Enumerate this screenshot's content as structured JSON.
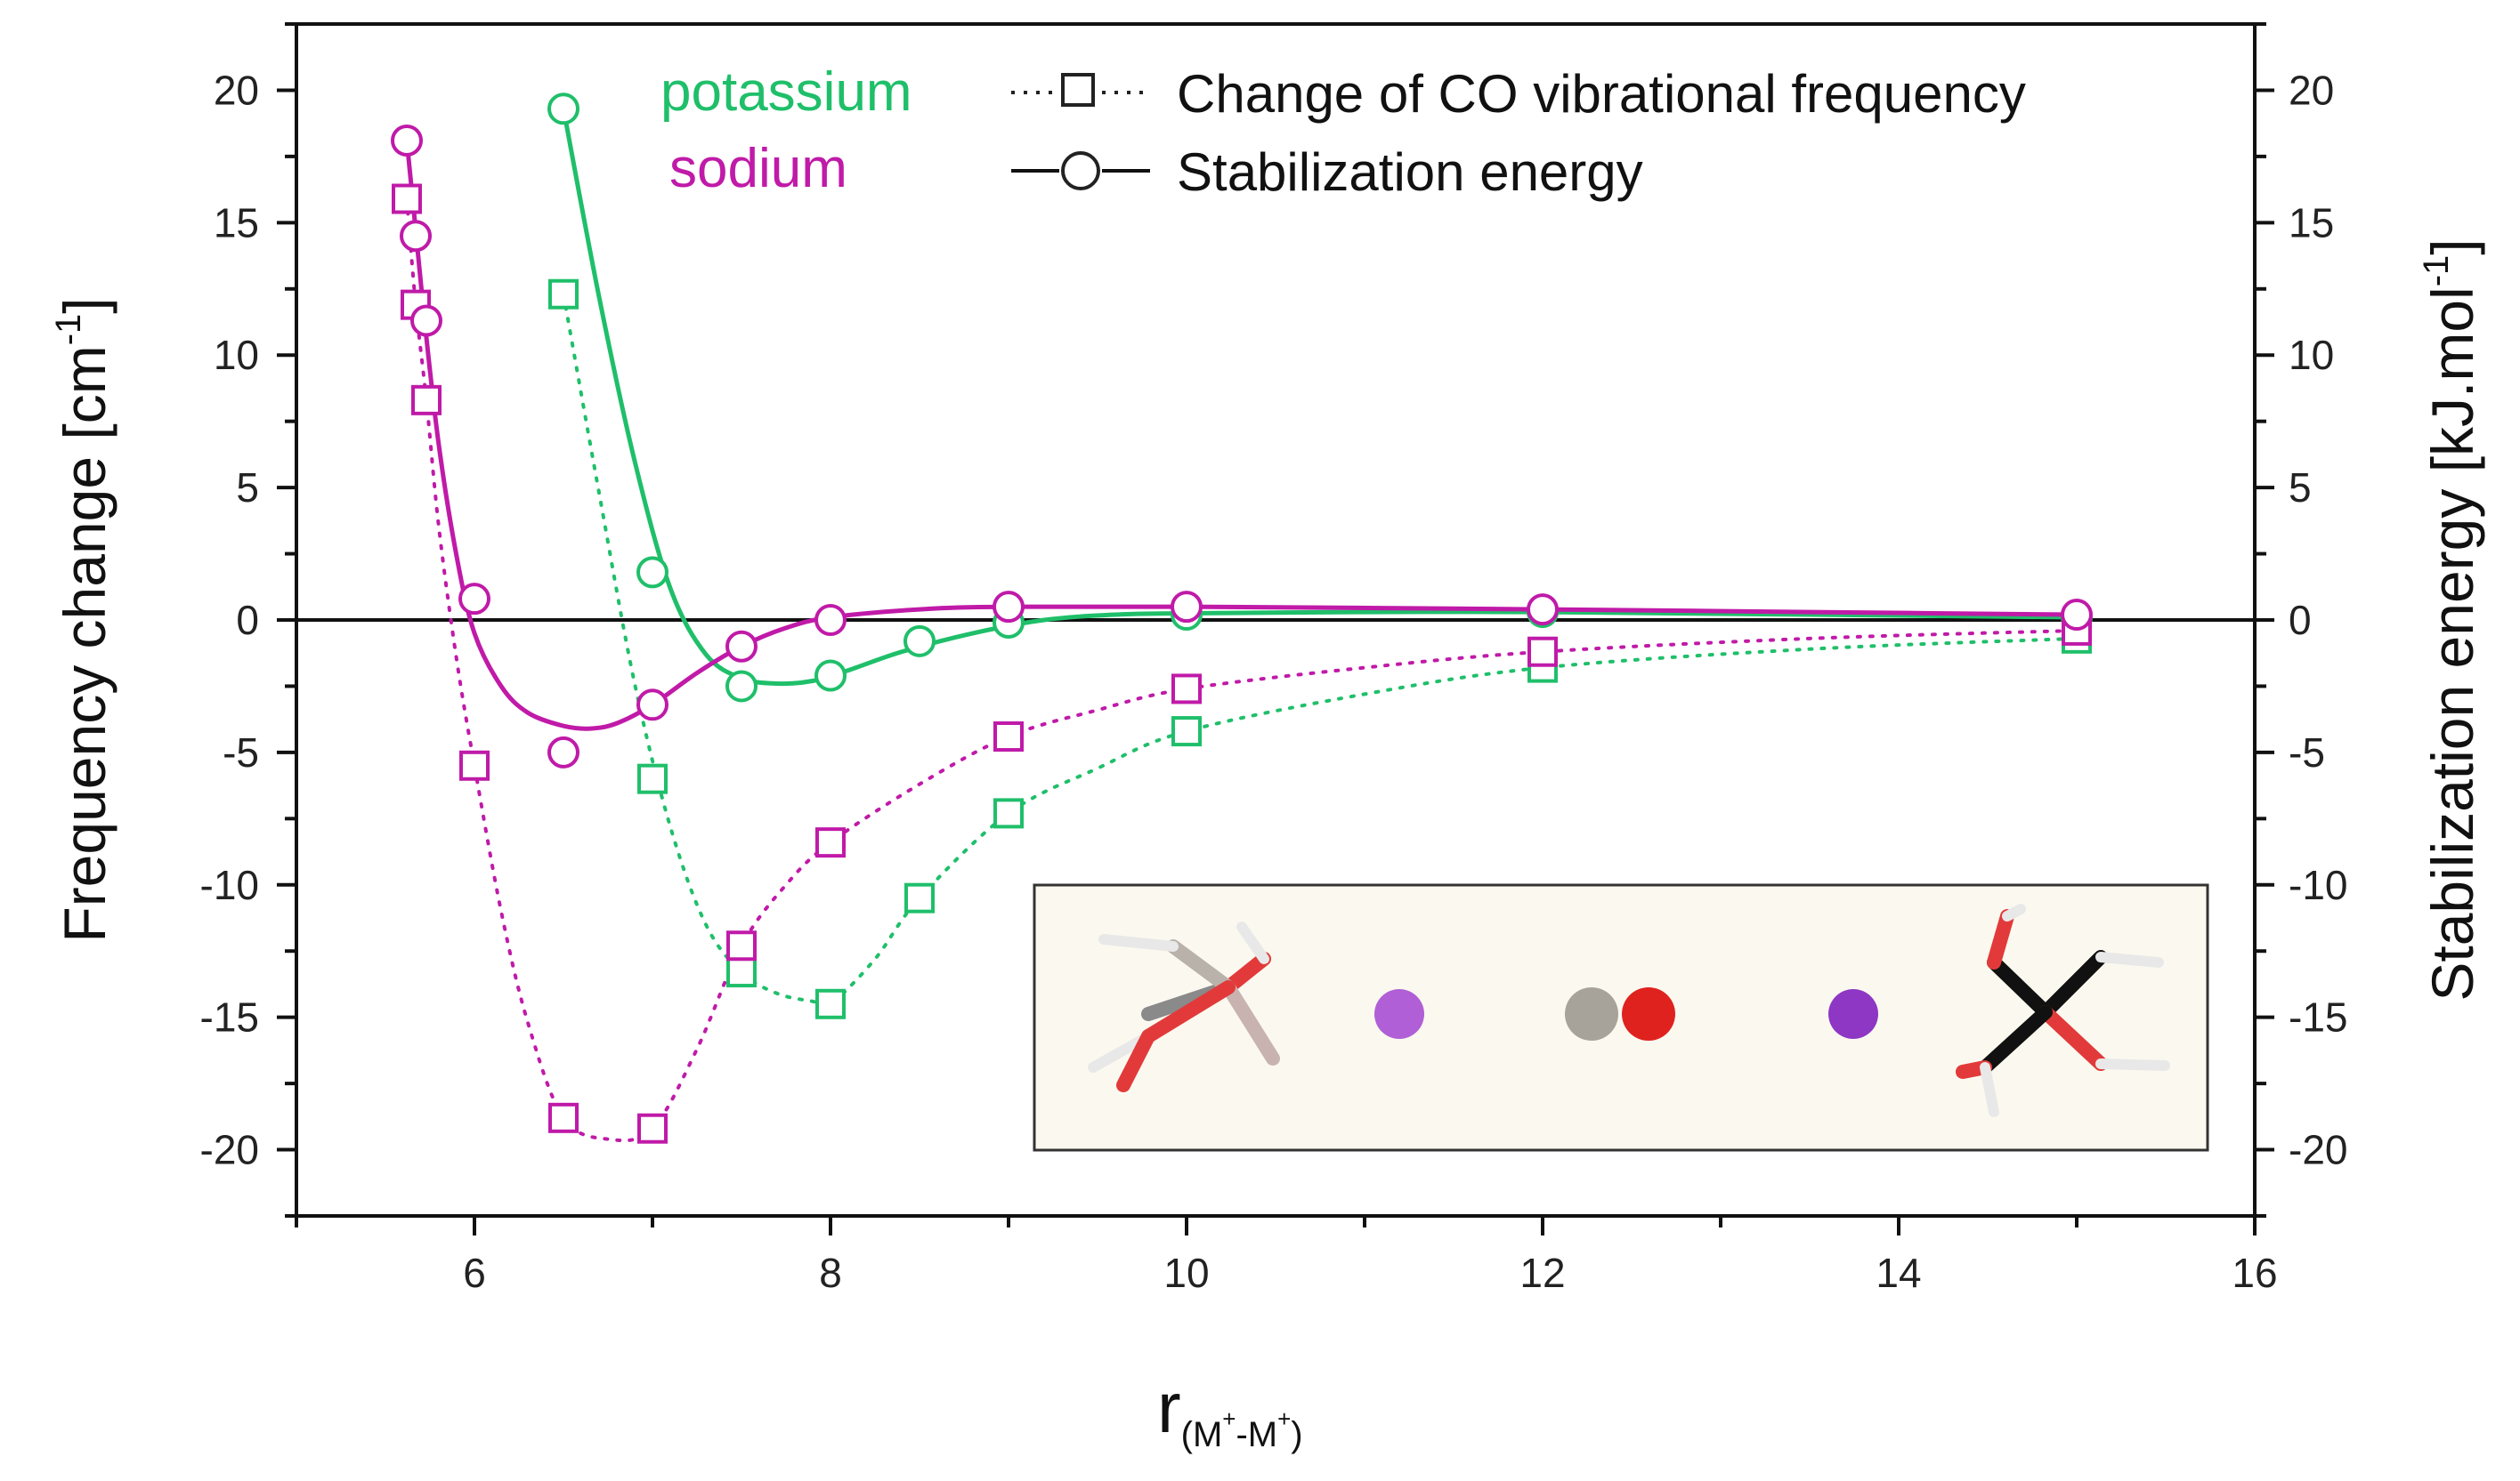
{
  "chart_data": {
    "type": "scatter",
    "xlabel": "r",
    "xlabel_sub": "(M",
    "xlabel_sup1": "+",
    "xlabel_mid": "-M",
    "xlabel_sup2": "+",
    "xlabel_close": ")",
    "ylabel_left": "Frequency change [cm",
    "ylabel_left_sup": "-1",
    "ylabel_left_close": "]",
    "ylabel_right": "Stabilization energy [kJ.mol",
    "ylabel_right_sup": "-1",
    "ylabel_right_close": "]",
    "xlim": [
      5,
      16
    ],
    "ylim": [
      -22.5,
      22.5
    ],
    "x_ticks": [
      6,
      8,
      10,
      12,
      14,
      16
    ],
    "y_ticks": [
      -20,
      -15,
      -10,
      -5,
      0,
      5,
      10,
      15,
      20
    ],
    "legend": {
      "frequency": "Change of CO vibrational frequency",
      "energy": "Stabilization energy"
    },
    "series": [
      {
        "name": "potassium",
        "color": "#1fbf6a",
        "frequency_points": {
          "x": [
            6.5,
            7.0,
            7.5,
            8.0,
            8.5,
            9.0,
            10.0,
            12.0,
            15.0
          ],
          "y": [
            12.3,
            -6.0,
            -13.3,
            -14.5,
            -10.5,
            -7.3,
            -4.2,
            -1.8,
            -0.7
          ]
        },
        "energy_points": {
          "x": [
            6.5,
            7.0,
            7.5,
            8.0,
            8.5,
            9.0,
            10.0,
            12.0,
            15.0
          ],
          "y": [
            19.3,
            1.8,
            -2.5,
            -2.1,
            -0.8,
            -0.1,
            0.2,
            0.3,
            0.1
          ]
        },
        "energy_curve": {
          "x": [
            6.5,
            6.7,
            6.9,
            7.1,
            7.3,
            7.5,
            7.7,
            7.9,
            8.1,
            8.4,
            8.8,
            9.2,
            9.6,
            10.0,
            11.0,
            12.0,
            13.5,
            15.0
          ],
          "y": [
            19.3,
            12.2,
            6.0,
            1.2,
            -1.3,
            -2.2,
            -2.4,
            -2.3,
            -1.9,
            -1.2,
            -0.5,
            0.0,
            0.2,
            0.25,
            0.3,
            0.3,
            0.2,
            0.1
          ]
        },
        "frequency_curve": {
          "x": [
            6.5,
            6.7,
            6.9,
            7.1,
            7.3,
            7.5,
            7.7,
            7.9,
            8.0,
            8.25,
            8.5,
            9.0,
            9.5,
            10.0,
            11.0,
            12.0,
            13.5,
            15.0
          ],
          "y": [
            12.3,
            4.8,
            -2.4,
            -7.8,
            -11.5,
            -13.3,
            -14.1,
            -14.4,
            -14.5,
            -12.8,
            -10.5,
            -7.3,
            -5.6,
            -4.2,
            -2.8,
            -1.8,
            -1.1,
            -0.7
          ]
        }
      },
      {
        "name": "sodium",
        "color": "#c01aa8",
        "frequency_points": {
          "x": [
            5.62,
            5.67,
            5.73,
            6.0,
            6.5,
            7.0,
            7.5,
            8.0,
            9.0,
            10.0,
            12.0,
            15.0
          ],
          "y": [
            15.9,
            11.9,
            8.3,
            -5.5,
            -18.8,
            -19.2,
            -12.3,
            -8.4,
            -4.4,
            -2.6,
            -1.2,
            -0.4
          ]
        },
        "energy_points": {
          "x": [
            5.62,
            5.67,
            5.73,
            6.0,
            6.5,
            7.0,
            7.5,
            8.0,
            9.0,
            10.0,
            12.0,
            15.0
          ],
          "y": [
            18.1,
            14.5,
            11.3,
            0.8,
            -5.0,
            -3.2,
            -1.0,
            0.0,
            0.5,
            0.5,
            0.4,
            0.2
          ]
        },
        "energy_curve": {
          "x": [
            5.62,
            5.66,
            5.72,
            5.8,
            5.9,
            6.0,
            6.15,
            6.3,
            6.5,
            6.65,
            6.8,
            7.0,
            7.25,
            7.5,
            7.75,
            8.0,
            8.5,
            9.0,
            10.0,
            12.0,
            13.5,
            15.0
          ],
          "y": [
            18.1,
            15.4,
            11.3,
            6.6,
            2.4,
            -0.5,
            -2.5,
            -3.5,
            -4.0,
            -4.1,
            -3.9,
            -3.2,
            -2.0,
            -1.0,
            -0.3,
            0.1,
            0.4,
            0.5,
            0.5,
            0.4,
            0.3,
            0.2
          ]
        },
        "frequency_curve": {
          "x": [
            5.62,
            5.67,
            5.73,
            5.8,
            5.9,
            6.0,
            6.15,
            6.3,
            6.5,
            6.75,
            7.0,
            7.25,
            7.5,
            7.75,
            8.0,
            8.5,
            9.0,
            9.5,
            10.0,
            11.0,
            12.0,
            13.5,
            15.0
          ],
          "y": [
            15.9,
            11.9,
            8.3,
            3.5,
            -1.5,
            -5.5,
            -11.0,
            -15.2,
            -18.8,
            -19.6,
            -19.2,
            -16.2,
            -12.3,
            -10.0,
            -8.4,
            -6.2,
            -4.4,
            -3.4,
            -2.6,
            -1.8,
            -1.2,
            -0.7,
            -0.4
          ]
        }
      }
    ]
  },
  "inset": {
    "description_free": true,
    "colors": {
      "oxygen": "#e0221f",
      "hydrogen": "#f2f2f2",
      "gray_atom": "#a8a39a",
      "boron_dark": "#111111",
      "na_light": "#b05fd6",
      "na_dark": "#8e37c4",
      "background": "#fbf9ef"
    }
  }
}
